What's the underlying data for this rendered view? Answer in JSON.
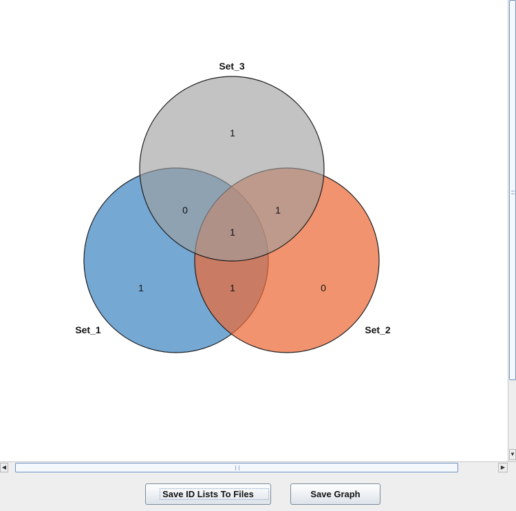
{
  "venn": {
    "sets": [
      {
        "name": "Set_1",
        "color": "#4e8fc6"
      },
      {
        "name": "Set_2",
        "color": "#ec6a37"
      },
      {
        "name": "Set_3",
        "color": "#9e9e9e"
      }
    ],
    "labels": {
      "set_1": "Set_1",
      "set_2": "Set_2",
      "set_3": "Set_3"
    },
    "counts": {
      "only_set_3": "1",
      "set_1_and_set_3": "0",
      "set_2_and_set_3": "1",
      "all_three": "1",
      "only_set_1": "1",
      "set_1_and_set_2": "1",
      "only_set_2": "0"
    }
  },
  "buttons": {
    "save_id_lists": "Save ID Lists To Files",
    "save_graph": "Save Graph"
  },
  "scrollbars": {
    "left_arrow_icon": "arrow-left-icon",
    "right_arrow_icon": "arrow-right-icon",
    "down_arrow_icon": "arrow-down-icon"
  }
}
